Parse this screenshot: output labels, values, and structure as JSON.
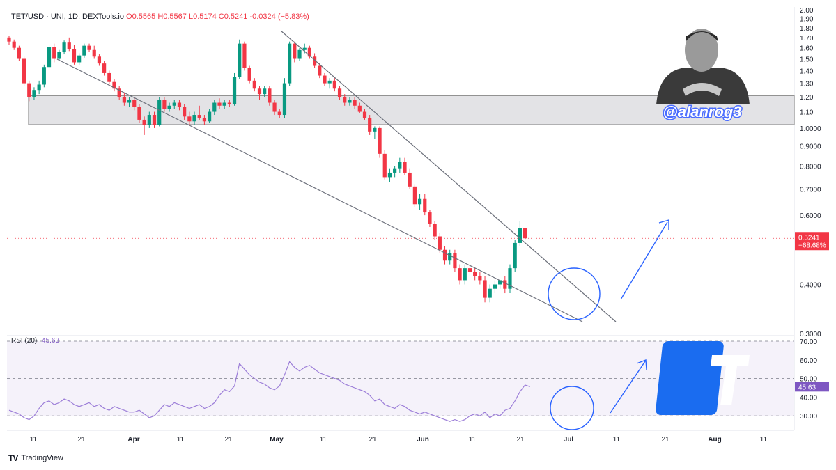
{
  "header": {
    "symbol": "TET/USD · UNI, 1D, DEXTools.io",
    "open": "O0.5565",
    "high": "H0.5567",
    "low": "L0.5174",
    "close": "C0.5241",
    "change": "-0.0324 (−5.83%)"
  },
  "rsi_panel": {
    "label": "RSI (20)",
    "value": "45.63"
  },
  "watermark": {
    "handle": "@alanrog3"
  },
  "brand": {
    "name": "TradingView",
    "logo": "TV"
  },
  "price_badge": {
    "price": "0.5241",
    "pct": "−68.68%"
  },
  "rsi_badge": {
    "value": "45.63"
  },
  "colors": {
    "up": "#089981",
    "down": "#f23645",
    "rsi": "#9c7ed8",
    "annotation": "#2962ff",
    "zone": "#d9d9de"
  },
  "chart_data": [
    {
      "type": "candlestick",
      "title": "TET/USD · UNI, 1D, DEXTools.io",
      "y_ticks": [
        "2.00",
        "1.90",
        "1.80",
        "1.70",
        "1.60",
        "1.50",
        "1.40",
        "1.30",
        "1.20",
        "1.10",
        "1.0000",
        "0.9000",
        "0.8000",
        "0.7000",
        "0.6000",
        "0.4000",
        "0.3000"
      ],
      "x_ticks": [
        "11",
        "21",
        "Apr",
        "11",
        "21",
        "May",
        "11",
        "21",
        "Jun",
        "11",
        "21",
        "Jul",
        "11",
        "21",
        "Aug",
        "11"
      ],
      "ylim": [
        0.22,
        2.0
      ],
      "scale": "log",
      "support_zone": [
        1.02,
        1.21
      ],
      "last_price": 0.5241,
      "ohlc": [
        [
          1.7,
          1.72,
          1.63,
          1.66
        ],
        [
          1.66,
          1.68,
          1.58,
          1.6
        ],
        [
          1.6,
          1.62,
          1.48,
          1.5
        ],
        [
          1.5,
          1.52,
          1.28,
          1.3
        ],
        [
          1.3,
          1.32,
          1.17,
          1.2
        ],
        [
          1.2,
          1.27,
          1.18,
          1.25
        ],
        [
          1.25,
          1.32,
          1.22,
          1.29
        ],
        [
          1.29,
          1.45,
          1.27,
          1.43
        ],
        [
          1.43,
          1.63,
          1.41,
          1.61
        ],
        [
          1.61,
          1.64,
          1.47,
          1.5
        ],
        [
          1.5,
          1.58,
          1.48,
          1.56
        ],
        [
          1.56,
          1.67,
          1.54,
          1.65
        ],
        [
          1.65,
          1.7,
          1.57,
          1.59
        ],
        [
          1.59,
          1.63,
          1.45,
          1.47
        ],
        [
          1.47,
          1.55,
          1.45,
          1.53
        ],
        [
          1.53,
          1.64,
          1.51,
          1.62
        ],
        [
          1.62,
          1.64,
          1.56,
          1.58
        ],
        [
          1.58,
          1.62,
          1.5,
          1.52
        ],
        [
          1.52,
          1.54,
          1.44,
          1.46
        ],
        [
          1.46,
          1.48,
          1.36,
          1.38
        ],
        [
          1.38,
          1.4,
          1.29,
          1.31
        ],
        [
          1.31,
          1.33,
          1.24,
          1.26
        ],
        [
          1.26,
          1.28,
          1.18,
          1.2
        ],
        [
          1.2,
          1.23,
          1.14,
          1.16
        ],
        [
          1.16,
          1.2,
          1.13,
          1.18
        ],
        [
          1.18,
          1.2,
          1.11,
          1.13
        ],
        [
          1.13,
          1.15,
          1.03,
          1.05
        ],
        [
          1.05,
          1.07,
          0.96,
          1.02
        ],
        [
          1.02,
          1.1,
          1.0,
          1.08
        ],
        [
          1.08,
          1.1,
          1.0,
          1.02
        ],
        [
          1.02,
          1.2,
          1.01,
          1.18
        ],
        [
          1.18,
          1.2,
          1.1,
          1.12
        ],
        [
          1.12,
          1.16,
          1.1,
          1.14
        ],
        [
          1.14,
          1.18,
          1.12,
          1.16
        ],
        [
          1.16,
          1.18,
          1.11,
          1.13
        ],
        [
          1.13,
          1.15,
          1.05,
          1.07
        ],
        [
          1.07,
          1.1,
          1.02,
          1.04
        ],
        [
          1.04,
          1.1,
          1.02,
          1.08
        ],
        [
          1.08,
          1.14,
          1.05,
          1.06
        ],
        [
          1.06,
          1.08,
          1.02,
          1.04
        ],
        [
          1.04,
          1.12,
          1.03,
          1.1
        ],
        [
          1.1,
          1.18,
          1.08,
          1.16
        ],
        [
          1.16,
          1.19,
          1.12,
          1.14
        ],
        [
          1.14,
          1.18,
          1.12,
          1.16
        ],
        [
          1.16,
          1.18,
          1.13,
          1.15
        ],
        [
          1.15,
          1.38,
          1.14,
          1.35
        ],
        [
          1.35,
          1.68,
          1.33,
          1.64
        ],
        [
          1.64,
          1.66,
          1.4,
          1.42
        ],
        [
          1.42,
          1.44,
          1.3,
          1.32
        ],
        [
          1.32,
          1.34,
          1.24,
          1.26
        ],
        [
          1.26,
          1.28,
          1.18,
          1.22
        ],
        [
          1.22,
          1.28,
          1.2,
          1.26
        ],
        [
          1.26,
          1.28,
          1.14,
          1.16
        ],
        [
          1.16,
          1.18,
          1.08,
          1.1
        ],
        [
          1.1,
          1.12,
          1.06,
          1.08
        ],
        [
          1.08,
          1.34,
          1.06,
          1.3
        ],
        [
          1.3,
          1.66,
          1.28,
          1.64
        ],
        [
          1.64,
          1.66,
          1.47,
          1.5
        ],
        [
          1.5,
          1.6,
          1.48,
          1.58
        ],
        [
          1.58,
          1.64,
          1.55,
          1.6
        ],
        [
          1.6,
          1.62,
          1.5,
          1.52
        ],
        [
          1.52,
          1.55,
          1.42,
          1.44
        ],
        [
          1.44,
          1.46,
          1.34,
          1.36
        ],
        [
          1.36,
          1.38,
          1.28,
          1.3
        ],
        [
          1.3,
          1.34,
          1.26,
          1.32
        ],
        [
          1.32,
          1.34,
          1.24,
          1.26
        ],
        [
          1.26,
          1.28,
          1.18,
          1.2
        ],
        [
          1.2,
          1.22,
          1.14,
          1.16
        ],
        [
          1.16,
          1.2,
          1.14,
          1.18
        ],
        [
          1.18,
          1.2,
          1.12,
          1.14
        ],
        [
          1.14,
          1.16,
          1.09,
          1.1
        ],
        [
          1.1,
          1.12,
          1.05,
          1.06
        ],
        [
          1.06,
          1.08,
          0.96,
          0.98
        ],
        [
          0.98,
          1.01,
          0.94,
          1.0
        ],
        [
          1.0,
          1.01,
          0.84,
          0.86
        ],
        [
          0.86,
          0.88,
          0.74,
          0.75
        ],
        [
          0.75,
          0.79,
          0.73,
          0.77
        ],
        [
          0.77,
          0.8,
          0.75,
          0.79
        ],
        [
          0.79,
          0.84,
          0.77,
          0.82
        ],
        [
          0.82,
          0.84,
          0.76,
          0.77
        ],
        [
          0.77,
          0.79,
          0.7,
          0.71
        ],
        [
          0.71,
          0.72,
          0.63,
          0.64
        ],
        [
          0.64,
          0.68,
          0.62,
          0.66
        ],
        [
          0.66,
          0.68,
          0.6,
          0.61
        ],
        [
          0.61,
          0.62,
          0.56,
          0.57
        ],
        [
          0.57,
          0.58,
          0.52,
          0.53
        ],
        [
          0.53,
          0.54,
          0.48,
          0.49
        ],
        [
          0.49,
          0.5,
          0.45,
          0.46
        ],
        [
          0.46,
          0.49,
          0.45,
          0.48
        ],
        [
          0.48,
          0.49,
          0.43,
          0.44
        ],
        [
          0.44,
          0.45,
          0.4,
          0.41
        ],
        [
          0.41,
          0.45,
          0.4,
          0.44
        ],
        [
          0.44,
          0.45,
          0.42,
          0.43
        ],
        [
          0.43,
          0.44,
          0.41,
          0.42
        ],
        [
          0.42,
          0.43,
          0.4,
          0.41
        ],
        [
          0.41,
          0.42,
          0.36,
          0.37
        ],
        [
          0.37,
          0.4,
          0.36,
          0.39
        ],
        [
          0.39,
          0.41,
          0.38,
          0.4
        ],
        [
          0.4,
          0.41,
          0.39,
          0.41
        ],
        [
          0.41,
          0.42,
          0.38,
          0.39
        ],
        [
          0.39,
          0.45,
          0.38,
          0.44
        ],
        [
          0.44,
          0.52,
          0.43,
          0.51
        ],
        [
          0.51,
          0.58,
          0.5,
          0.557
        ],
        [
          0.5565,
          0.5567,
          0.5174,
          0.5241
        ]
      ]
    },
    {
      "type": "line",
      "name": "RSI (20)",
      "ylim": [
        20,
        70
      ],
      "y_ticks": [
        "70.00",
        "60.00",
        "50.00",
        "40.00",
        "30.00"
      ],
      "bands": [
        30,
        50,
        70
      ],
      "last_value": 45.63,
      "values": [
        33,
        32,
        31,
        29,
        28,
        30,
        34,
        37,
        38,
        36,
        37,
        39,
        38,
        36,
        35,
        36,
        37,
        35,
        36,
        34,
        33,
        35,
        34,
        33,
        32,
        32,
        33,
        31,
        29,
        30,
        33,
        36,
        35,
        37,
        36,
        35,
        34,
        35,
        36,
        34,
        35,
        37,
        41,
        44,
        43,
        46,
        58,
        55,
        52,
        50,
        48,
        47,
        45,
        44,
        46,
        52,
        59,
        56,
        54,
        56,
        57,
        55,
        53,
        52,
        51,
        50,
        49,
        47,
        46,
        45,
        44,
        43,
        41,
        38,
        39,
        36,
        35,
        34,
        36,
        35,
        33,
        32,
        31,
        32,
        31,
        30,
        29,
        28,
        27,
        28,
        27,
        28,
        30,
        31,
        30,
        32,
        29,
        31,
        30,
        33,
        34,
        38,
        43,
        46.5,
        45.63
      ]
    }
  ],
  "annotations": {
    "descending_wedge": "falling wedge trendlines",
    "breakout_arrows": "projected upside arrows",
    "circled_zone": "circled bottom on price and RSI"
  }
}
